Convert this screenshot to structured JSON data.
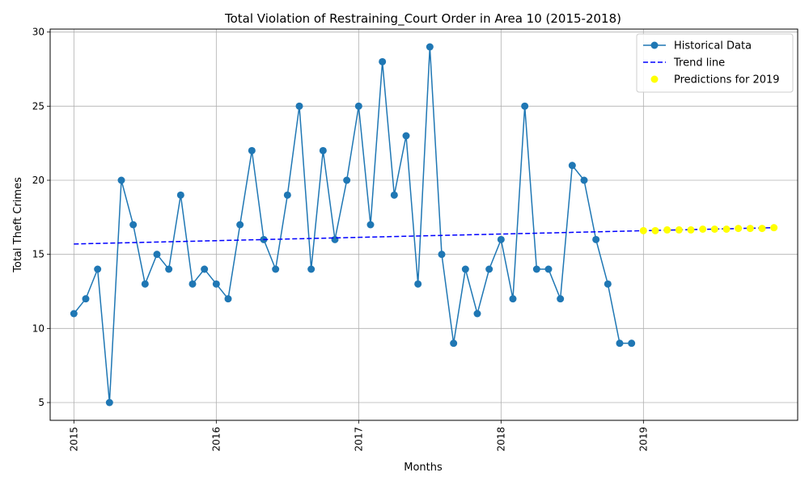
{
  "chart_data": {
    "type": "line",
    "title": "Total Violation of Restraining_Court Order in Area 10 (2015-2018)",
    "xlabel": "Months",
    "ylabel": "Total Theft Crimes",
    "x_ticks": [
      "2015",
      "2016",
      "2017",
      "2018",
      "2019"
    ],
    "y_ticks": [
      5,
      10,
      15,
      20,
      25,
      30
    ],
    "xlim": [
      "2014-11",
      "2020-02"
    ],
    "ylim": [
      3.8,
      30.2
    ],
    "grid": true,
    "legend_position": "top-right",
    "series": [
      {
        "name": "Historical Data",
        "kind": "line-marker",
        "color": "#1f77b4",
        "x": [
          "2015-01",
          "2015-02",
          "2015-03",
          "2015-04",
          "2015-05",
          "2015-06",
          "2015-07",
          "2015-08",
          "2015-09",
          "2015-10",
          "2015-11",
          "2015-12",
          "2016-01",
          "2016-02",
          "2016-03",
          "2016-04",
          "2016-05",
          "2016-06",
          "2016-07",
          "2016-08",
          "2016-09",
          "2016-10",
          "2016-11",
          "2016-12",
          "2017-01",
          "2017-02",
          "2017-03",
          "2017-04",
          "2017-05",
          "2017-06",
          "2017-07",
          "2017-08",
          "2017-09",
          "2017-10",
          "2017-11",
          "2017-12",
          "2018-01",
          "2018-02",
          "2018-03",
          "2018-04",
          "2018-05",
          "2018-06",
          "2018-07",
          "2018-08",
          "2018-09",
          "2018-10",
          "2018-11",
          "2018-12"
        ],
        "values": [
          11,
          12,
          14,
          5,
          20,
          17,
          13,
          15,
          14,
          19,
          13,
          14,
          13,
          12,
          17,
          22,
          16,
          14,
          19,
          25,
          14,
          22,
          16,
          20,
          25,
          17,
          28,
          19,
          23,
          13,
          29,
          15,
          9,
          14,
          11,
          14,
          16,
          12,
          25,
          14,
          14,
          12,
          21,
          20,
          16,
          13,
          9,
          9
        ]
      },
      {
        "name": "Trend line",
        "kind": "dashed-line",
        "color": "#0000ff",
        "x": [
          "2015-01",
          "2019-12"
        ],
        "values": [
          15.7,
          16.8
        ]
      },
      {
        "name": "Predictions for 2019",
        "kind": "scatter",
        "color": "#ffff00",
        "x": [
          "2019-01",
          "2019-02",
          "2019-03",
          "2019-04",
          "2019-05",
          "2019-06",
          "2019-07",
          "2019-08",
          "2019-09",
          "2019-10",
          "2019-11",
          "2019-12"
        ],
        "values": [
          16.6,
          16.6,
          16.65,
          16.65,
          16.65,
          16.7,
          16.7,
          16.7,
          16.75,
          16.75,
          16.75,
          16.8
        ]
      }
    ]
  }
}
